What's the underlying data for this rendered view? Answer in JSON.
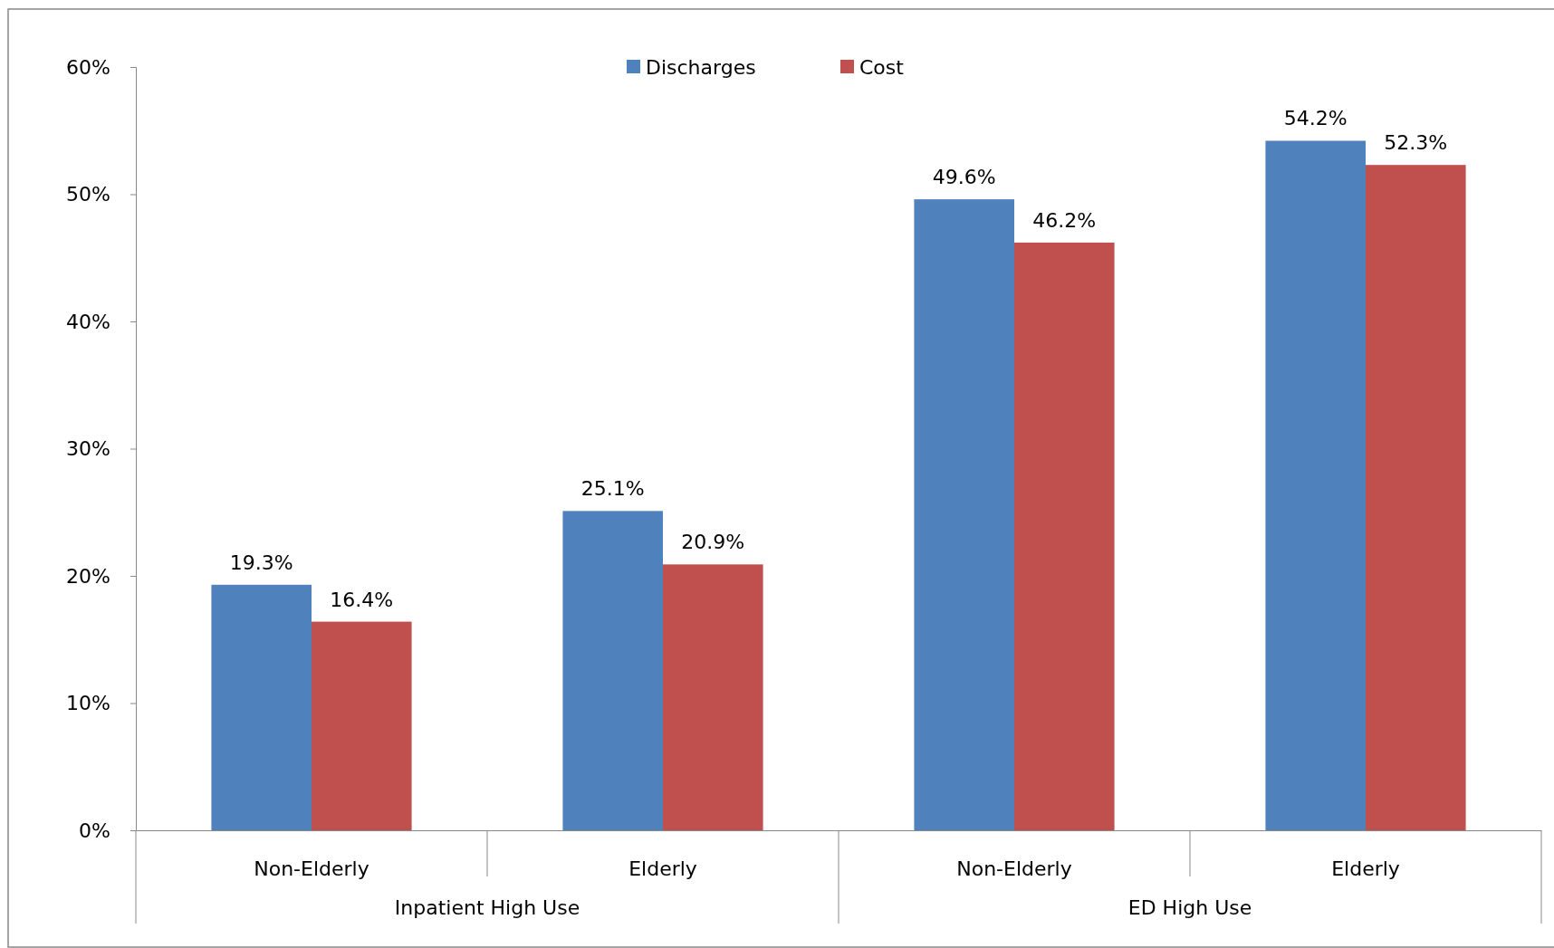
{
  "chart_data": {
    "type": "bar",
    "categories": [
      "Non-Elderly",
      "Elderly",
      "Non-Elderly",
      "Elderly"
    ],
    "series": [
      {
        "name": "Discharges",
        "color": "#4f81bd",
        "values": [
          19.3,
          25.1,
          49.6,
          54.2
        ],
        "value_labels": [
          "19.3%",
          "25.1%",
          "49.6%",
          "54.2%"
        ]
      },
      {
        "name": "Cost",
        "color": "#c0504d",
        "values": [
          16.4,
          20.9,
          46.2,
          52.3
        ],
        "value_labels": [
          "16.4%",
          "20.9%",
          "46.2%",
          "52.3%"
        ]
      }
    ],
    "annotations": [
      "Inpatient High Use",
      "ED High Use"
    ],
    "ylim": [
      0,
      60
    ],
    "yticks": [
      {
        "value": 0,
        "label": "0%"
      },
      {
        "value": 10,
        "label": "10%"
      },
      {
        "value": 20,
        "label": "20%"
      },
      {
        "value": 30,
        "label": "30%"
      },
      {
        "value": 40,
        "label": "40%"
      },
      {
        "value": 50,
        "label": "50%"
      },
      {
        "value": 60,
        "label": "60%"
      }
    ],
    "legend": "top",
    "grid": false
  }
}
